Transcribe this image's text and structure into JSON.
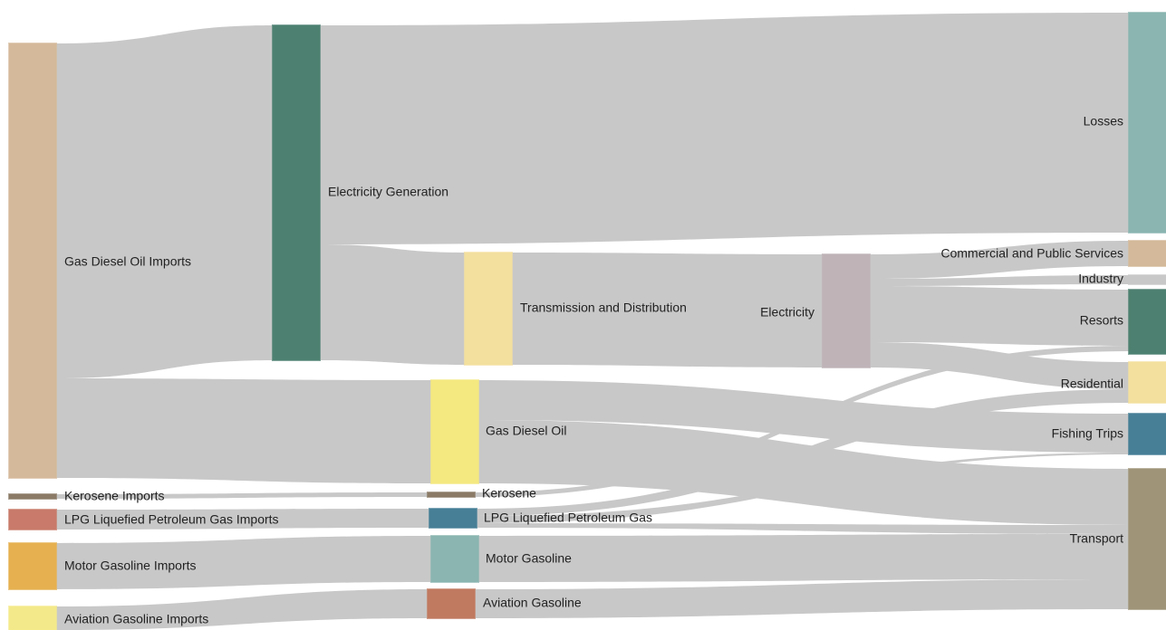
{
  "diagram": {
    "type": "sankey",
    "nodes": [
      {
        "id": "gas_diesel_imports",
        "label": "Gas Diesel Oil Imports",
        "color": "#d4b99a"
      },
      {
        "id": "kerosene_imports",
        "label": "Kerosene Imports",
        "color": "#8a7a66"
      },
      {
        "id": "lpg_imports",
        "label": "LPG Liquefied Petroleum Gas Imports",
        "color": "#c97a6a"
      },
      {
        "id": "motor_gasoline_imports",
        "label": "Motor Gasoline Imports",
        "color": "#e6b050"
      },
      {
        "id": "aviation_gasoline_imports",
        "label": "Aviation Gasoline Imports",
        "color": "#f3e98a"
      },
      {
        "id": "electricity_generation",
        "label": "Electricity Generation",
        "color": "#4d8070"
      },
      {
        "id": "transmission_distribution",
        "label": "Transmission and Distribution",
        "color": "#f3df9e"
      },
      {
        "id": "gas_diesel_oil",
        "label": "Gas Diesel Oil",
        "color": "#f4e880"
      },
      {
        "id": "kerosene",
        "label": "Kerosene",
        "color": "#8a7a66"
      },
      {
        "id": "lpg",
        "label": "LPG Liquefied Petroleum Gas",
        "color": "#467f96"
      },
      {
        "id": "motor_gasoline",
        "label": "Motor Gasoline",
        "color": "#8ab5b0"
      },
      {
        "id": "aviation_gasoline",
        "label": "Aviation Gasoline",
        "color": "#c07a60"
      },
      {
        "id": "electricity",
        "label": "Electricity",
        "color": "#bfb3b8"
      },
      {
        "id": "losses",
        "label": "Losses",
        "color": "#8ab5b0"
      },
      {
        "id": "commercial_public",
        "label": "Commercial and Public Services",
        "color": "#d4b99a"
      },
      {
        "id": "industry",
        "label": "Industry",
        "color": "#c8c8c8"
      },
      {
        "id": "resorts",
        "label": "Resorts",
        "color": "#4d8070"
      },
      {
        "id": "residential",
        "label": "Residential",
        "color": "#f3df9e"
      },
      {
        "id": "fishing_trips",
        "label": "Fishing Trips",
        "color": "#467f96"
      },
      {
        "id": "transport",
        "label": "Transport",
        "color": "#a09478"
      }
    ]
  }
}
